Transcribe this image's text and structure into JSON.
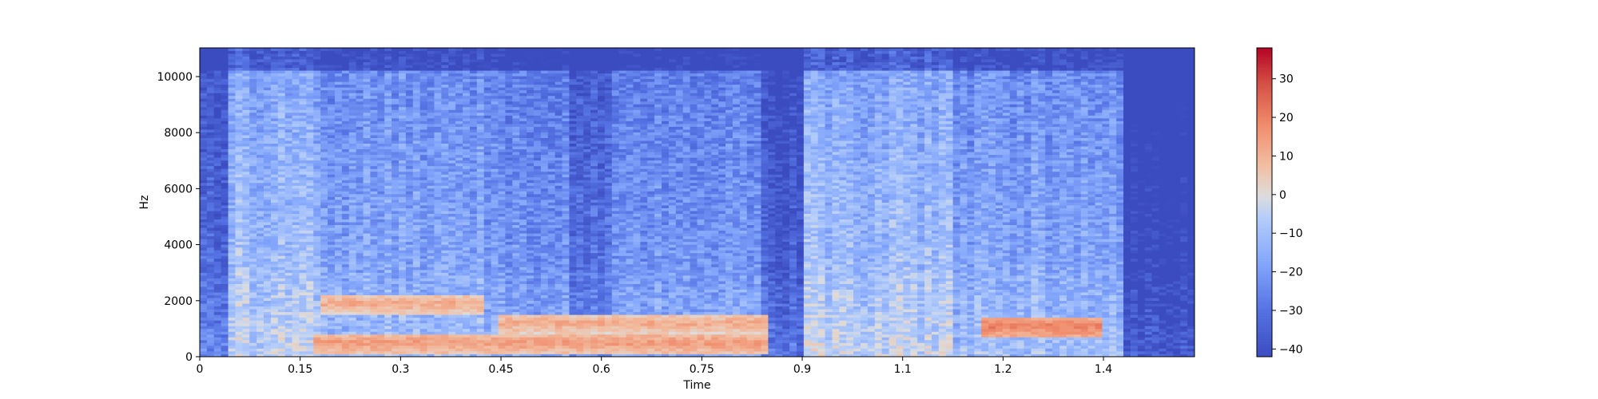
{
  "chart_data": {
    "type": "heatmap",
    "title": "",
    "xlabel": "Time",
    "ylabel": "Hz",
    "xlim": [
      0,
      1.486
    ],
    "ylim": [
      0,
      11025
    ],
    "x_ticks": [
      {
        "value": 0,
        "label": "0"
      },
      {
        "value": 0.15,
        "label": "0.15"
      },
      {
        "value": 0.3,
        "label": "0.3"
      },
      {
        "value": 0.45,
        "label": "0.45"
      },
      {
        "value": 0.6,
        "label": "0.6"
      },
      {
        "value": 0.75,
        "label": "0.75"
      },
      {
        "value": 0.9,
        "label": "0.9"
      },
      {
        "value": 1.05,
        "label": "1.1"
      },
      {
        "value": 1.2,
        "label": "1.2"
      },
      {
        "value": 1.35,
        "label": "1.4"
      }
    ],
    "y_ticks": [
      {
        "value": 0,
        "label": "0"
      },
      {
        "value": 2000,
        "label": "2000"
      },
      {
        "value": 4000,
        "label": "4000"
      },
      {
        "value": 6000,
        "label": "6000"
      },
      {
        "value": 8000,
        "label": "8000"
      },
      {
        "value": 10000,
        "label": "10000"
      }
    ],
    "colorbar": {
      "colormap": "coolwarm",
      "vmin": -42,
      "vmax": 38,
      "ticks": [
        {
          "value": 30,
          "label": "30"
        },
        {
          "value": 20,
          "label": "20"
        },
        {
          "value": 10,
          "label": "10"
        },
        {
          "value": 0,
          "label": "0"
        },
        {
          "value": -10,
          "label": "−10"
        },
        {
          "value": -20,
          "label": "−20"
        },
        {
          "value": -30,
          "label": "−30"
        },
        {
          "value": -40,
          "label": "−40"
        }
      ]
    },
    "energy_segments": [
      {
        "t_start": 0.0,
        "t_end": 0.04,
        "level_db": -30
      },
      {
        "t_start": 0.04,
        "t_end": 0.18,
        "level_db": -8
      },
      {
        "t_start": 0.18,
        "t_end": 0.42,
        "level_db": -14
      },
      {
        "t_start": 0.42,
        "t_end": 0.55,
        "level_db": -18
      },
      {
        "t_start": 0.55,
        "t_end": 0.62,
        "level_db": -28
      },
      {
        "t_start": 0.62,
        "t_end": 0.84,
        "level_db": -18
      },
      {
        "t_start": 0.84,
        "t_end": 0.9,
        "level_db": -32
      },
      {
        "t_start": 0.9,
        "t_end": 1.13,
        "level_db": -8
      },
      {
        "t_start": 1.13,
        "t_end": 1.38,
        "level_db": -14
      },
      {
        "t_start": 1.38,
        "t_end": 1.486,
        "level_db": -40
      }
    ],
    "formant_tracks": [
      {
        "freq_hz": 500,
        "t_start": 0.17,
        "t_end": 0.85,
        "level_db": 15
      },
      {
        "freq_hz": 1200,
        "t_start": 0.45,
        "t_end": 0.85,
        "level_db": 12
      },
      {
        "freq_hz": 1900,
        "t_start": 0.18,
        "t_end": 0.42,
        "level_db": 12
      },
      {
        "freq_hz": 1100,
        "t_start": 1.17,
        "t_end": 1.35,
        "level_db": 20
      }
    ]
  }
}
